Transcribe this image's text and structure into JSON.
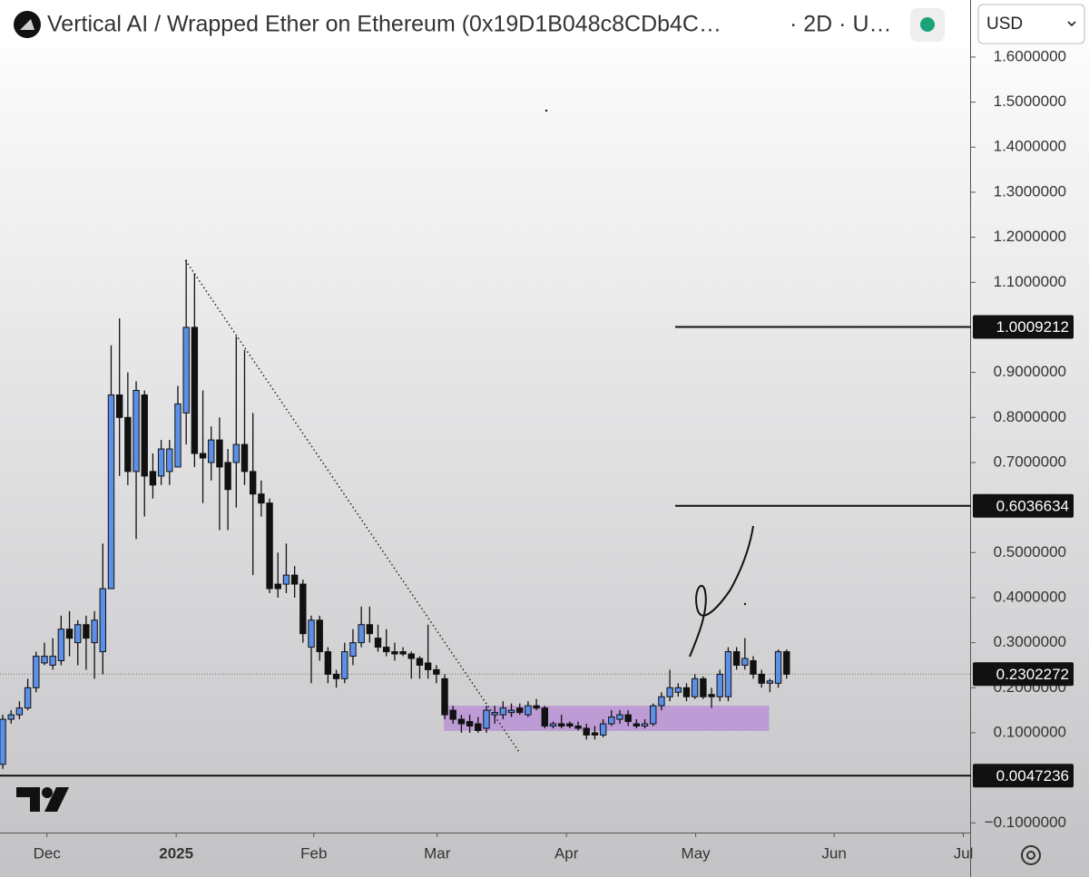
{
  "chart_data": {
    "type": "candlestick",
    "title": "Vertical AI / Wrapped Ether on Ethereum (0x19D1B048c8CDb4C…",
    "interval": "· 2D · U…",
    "currency": "USD",
    "up_color": "#5b8fe8",
    "down_color": "#111111",
    "open": [
      0.03,
      0.13,
      0.14,
      0.155,
      0.2,
      0.255,
      0.25,
      0.26,
      0.33,
      0.3,
      0.34,
      0.3,
      0.28,
      0.42,
      0.85,
      0.8,
      0.68,
      0.85,
      0.68,
      0.67,
      0.68,
      0.69,
      0.81,
      1.0,
      0.72,
      0.7,
      0.75,
      0.7,
      0.7,
      0.74,
      0.68,
      0.63,
      0.61,
      0.43,
      0.43,
      0.45,
      0.43,
      0.29,
      0.35,
      0.28,
      0.23,
      0.22,
      0.27,
      0.3,
      0.34,
      0.31,
      0.29,
      0.28,
      0.28,
      0.275,
      0.265,
      0.255,
      0.24,
      0.22,
      0.15,
      0.13,
      0.125,
      0.12,
      0.11,
      0.14,
      0.14,
      0.145,
      0.155,
      0.14,
      0.16,
      0.155,
      0.115,
      0.12,
      0.12,
      0.115,
      0.11,
      0.1,
      0.095,
      0.12,
      0.13,
      0.14,
      0.12,
      0.115,
      0.12,
      0.16,
      0.18,
      0.19,
      0.2,
      0.18,
      0.22,
      0.185,
      0.18,
      0.18,
      0.28,
      0.25,
      0.26,
      0.23,
      0.21,
      0.21,
      0.28
    ],
    "high": [
      0.14,
      0.15,
      0.17,
      0.22,
      0.28,
      0.3,
      0.31,
      0.36,
      0.37,
      0.35,
      0.36,
      0.37,
      0.52,
      0.96,
      1.02,
      0.9,
      0.88,
      0.86,
      0.72,
      0.75,
      0.75,
      0.87,
      1.15,
      1.12,
      0.86,
      0.78,
      0.8,
      0.73,
      0.98,
      0.95,
      0.81,
      0.66,
      0.62,
      0.5,
      0.52,
      0.47,
      0.44,
      0.36,
      0.36,
      0.29,
      0.24,
      0.3,
      0.33,
      0.38,
      0.38,
      0.34,
      0.33,
      0.3,
      0.29,
      0.28,
      0.27,
      0.34,
      0.25,
      0.23,
      0.16,
      0.14,
      0.14,
      0.135,
      0.16,
      0.16,
      0.17,
      0.165,
      0.165,
      0.17,
      0.175,
      0.16,
      0.125,
      0.14,
      0.125,
      0.125,
      0.12,
      0.115,
      0.13,
      0.15,
      0.15,
      0.15,
      0.13,
      0.13,
      0.165,
      0.19,
      0.24,
      0.21,
      0.21,
      0.23,
      0.225,
      0.2,
      0.24,
      0.29,
      0.29,
      0.31,
      0.27,
      0.24,
      0.22,
      0.285,
      0.285
    ],
    "low": [
      0.02,
      0.12,
      0.13,
      0.15,
      0.19,
      0.25,
      0.24,
      0.25,
      0.27,
      0.25,
      0.24,
      0.22,
      0.23,
      0.42,
      0.67,
      0.65,
      0.53,
      0.58,
      0.62,
      0.65,
      0.65,
      0.69,
      0.74,
      0.69,
      0.61,
      0.66,
      0.55,
      0.55,
      0.6,
      0.65,
      0.45,
      0.58,
      0.41,
      0.4,
      0.41,
      0.4,
      0.3,
      0.21,
      0.26,
      0.21,
      0.2,
      0.21,
      0.25,
      0.29,
      0.3,
      0.28,
      0.27,
      0.26,
      0.27,
      0.22,
      0.22,
      0.22,
      0.21,
      0.13,
      0.12,
      0.1,
      0.1,
      0.1,
      0.1,
      0.12,
      0.13,
      0.135,
      0.14,
      0.135,
      0.15,
      0.11,
      0.11,
      0.11,
      0.11,
      0.105,
      0.085,
      0.085,
      0.09,
      0.115,
      0.12,
      0.115,
      0.11,
      0.11,
      0.115,
      0.15,
      0.17,
      0.18,
      0.17,
      0.175,
      0.175,
      0.155,
      0.17,
      0.17,
      0.24,
      0.24,
      0.22,
      0.2,
      0.19,
      0.2,
      0.22
    ],
    "close": [
      0.13,
      0.14,
      0.155,
      0.2,
      0.27,
      0.27,
      0.27,
      0.33,
      0.31,
      0.34,
      0.31,
      0.35,
      0.42,
      0.85,
      0.8,
      0.68,
      0.86,
      0.67,
      0.65,
      0.73,
      0.73,
      0.83,
      1.0,
      0.72,
      0.71,
      0.75,
      0.69,
      0.64,
      0.74,
      0.68,
      0.63,
      0.61,
      0.42,
      0.42,
      0.45,
      0.43,
      0.32,
      0.35,
      0.28,
      0.23,
      0.22,
      0.28,
      0.3,
      0.34,
      0.32,
      0.29,
      0.28,
      0.275,
      0.275,
      0.265,
      0.25,
      0.24,
      0.23,
      0.14,
      0.13,
      0.12,
      0.115,
      0.105,
      0.15,
      0.145,
      0.155,
      0.15,
      0.145,
      0.16,
      0.155,
      0.115,
      0.12,
      0.115,
      0.115,
      0.11,
      0.095,
      0.095,
      0.12,
      0.135,
      0.14,
      0.125,
      0.115,
      0.12,
      0.16,
      0.18,
      0.2,
      0.2,
      0.18,
      0.22,
      0.18,
      0.18,
      0.23,
      0.28,
      0.25,
      0.265,
      0.23,
      0.21,
      0.215,
      0.28,
      0.23
    ],
    "xlim": [
      -0.33,
      115.9
    ],
    "xticks": [
      {
        "value": 5.3,
        "label": "Dec"
      },
      {
        "value": 20.8,
        "label": "2025"
      },
      {
        "value": 37.3,
        "label": "Feb"
      },
      {
        "value": 52.1,
        "label": "Mar"
      },
      {
        "value": 67.6,
        "label": "Apr"
      },
      {
        "value": 83.1,
        "label": "May"
      },
      {
        "value": 99.7,
        "label": "Jun"
      },
      {
        "value": 115.2,
        "label": "Jul"
      }
    ],
    "ylim": [
      -0.1215,
      1.626
    ],
    "yticks": [
      {
        "value": 1.6,
        "label": "1.6000000"
      },
      {
        "value": 1.5,
        "label": "1.5000000"
      },
      {
        "value": 1.4,
        "label": "1.4000000"
      },
      {
        "value": 1.3,
        "label": "1.3000000"
      },
      {
        "value": 1.2,
        "label": "1.2000000"
      },
      {
        "value": 1.1,
        "label": "1.1000000"
      },
      {
        "value": 0.9,
        "label": "0.9000000"
      },
      {
        "value": 0.8,
        "label": "0.8000000"
      },
      {
        "value": 0.7,
        "label": "0.7000000"
      },
      {
        "value": 0.5,
        "label": "0.5000000"
      },
      {
        "value": 0.4,
        "label": "0.4000000"
      },
      {
        "value": 0.3,
        "label": "0.3000000"
      },
      {
        "value": 0.2,
        "label": "0.2000000"
      },
      {
        "value": 0.1,
        "label": "0.1000000"
      },
      {
        "value": -0.1,
        "label": "−0.1000000"
      }
    ],
    "levels": [
      1.0009212,
      0.6036634
    ],
    "support": 0.0047236,
    "last_price": 0.2302272,
    "zone": {
      "x": [
        52.9,
        91.9
      ],
      "y": [
        0.104,
        0.16
      ]
    },
    "trendline": {
      "x": [
        21.9,
        61.9
      ],
      "y": [
        1.149,
        0.058
      ]
    }
  }
}
